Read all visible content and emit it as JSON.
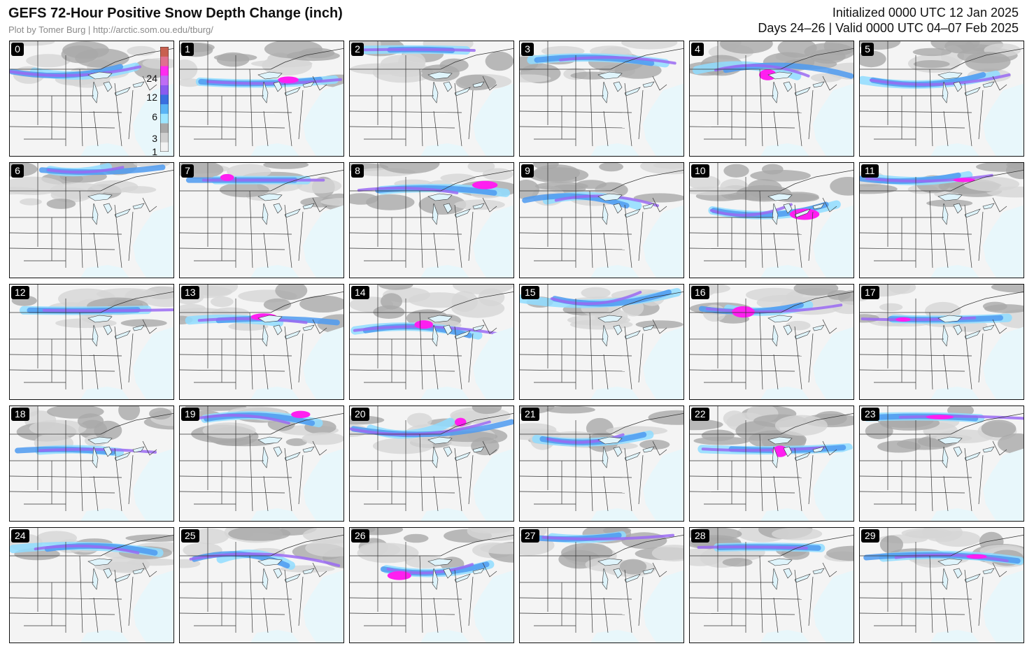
{
  "header": {
    "title": "GEFS 72-Hour Positive Snow Depth Change (inch)",
    "credit": "Plot by Tomer Burg | http://arctic.som.ou.edu/tburg/",
    "initialized": "Initialized 0000 UTC 12 Jan 2025",
    "valid": "Days 24–26 | Valid 0000 UTC 04–07 Feb 2025"
  },
  "colorbar": {
    "labels": [
      "24",
      "12",
      "6",
      "3",
      "1"
    ],
    "colors": [
      "#f2f2f2",
      "#cfcfcf",
      "#a8a8a8",
      "#9ee6ff",
      "#5ab4f5",
      "#3a6fe0",
      "#8a5cf0",
      "#c06cf5",
      "#ff2cf0",
      "#e07090",
      "#c8604f"
    ]
  },
  "colors": {
    "land": "#f4f4f4",
    "ocean": "#e8f7fb",
    "light_gray": "#d6d6d6",
    "mid_gray": "#a9a9a9",
    "light_blue": "#8fdcff",
    "blue": "#4d9af0",
    "purple": "#9a6af2",
    "magenta": "#ff1ff0",
    "state_line": "#333333"
  },
  "members": [
    {
      "label": "0"
    },
    {
      "label": "1"
    },
    {
      "label": "2"
    },
    {
      "label": "3"
    },
    {
      "label": "4"
    },
    {
      "label": "5"
    },
    {
      "label": "6"
    },
    {
      "label": "7"
    },
    {
      "label": "8"
    },
    {
      "label": "9"
    },
    {
      "label": "10"
    },
    {
      "label": "11"
    },
    {
      "label": "12"
    },
    {
      "label": "13"
    },
    {
      "label": "14"
    },
    {
      "label": "15"
    },
    {
      "label": "16"
    },
    {
      "label": "17"
    },
    {
      "label": "18"
    },
    {
      "label": "19"
    },
    {
      "label": "20"
    },
    {
      "label": "21"
    },
    {
      "label": "22"
    },
    {
      "label": "23"
    },
    {
      "label": "24"
    },
    {
      "label": "25"
    },
    {
      "label": "26"
    },
    {
      "label": "27"
    },
    {
      "label": "28"
    },
    {
      "label": "29"
    }
  ]
}
